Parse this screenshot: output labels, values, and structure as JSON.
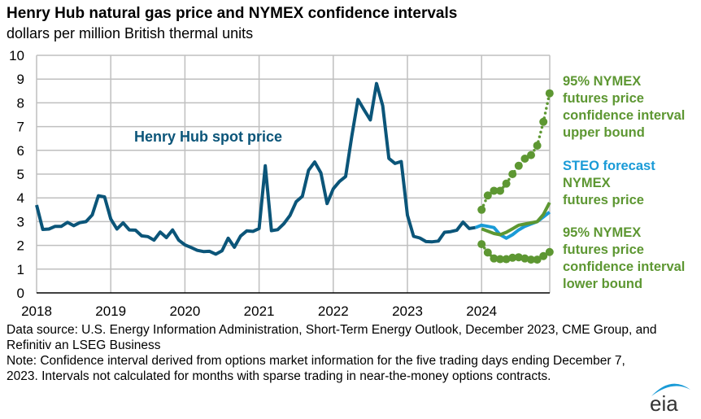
{
  "title": "Henry Hub natural gas price and NYMEX confidence intervals",
  "subtitle": "dollars per million British thermal units",
  "chart_data": {
    "type": "line",
    "title": "Henry Hub natural gas price and NYMEX confidence intervals",
    "ylabel": "dollars per million British thermal units",
    "ylim": [
      0,
      10
    ],
    "yticks": [
      "0",
      "1",
      "2",
      "3",
      "4",
      "5",
      "6",
      "7",
      "8",
      "9",
      "10"
    ],
    "xticks": [
      "2018",
      "2019",
      "2020",
      "2021",
      "2022",
      "2023",
      "2024"
    ],
    "grid": true,
    "x_unit": "month",
    "series": [
      {
        "name": "Henry Hub spot price",
        "color": "#0b5579",
        "start": "2018-01",
        "values": [
          3.7,
          2.67,
          2.69,
          2.8,
          2.8,
          2.97,
          2.83,
          2.96,
          3.0,
          3.28,
          4.09,
          4.04,
          3.11,
          2.69,
          2.95,
          2.65,
          2.64,
          2.4,
          2.37,
          2.22,
          2.56,
          2.33,
          2.65,
          2.22,
          2.02,
          1.91,
          1.79,
          1.74,
          1.75,
          1.63,
          1.77,
          2.3,
          1.92,
          2.39,
          2.61,
          2.59,
          2.71,
          5.35,
          2.62,
          2.66,
          2.91,
          3.26,
          3.84,
          4.07,
          5.16,
          5.51,
          5.05,
          3.76,
          4.38,
          4.69,
          4.9,
          6.6,
          8.14,
          7.7,
          7.28,
          8.81,
          7.88,
          5.66,
          5.45,
          5.53,
          3.27,
          2.38,
          2.31,
          2.16,
          2.15,
          2.18,
          2.55,
          2.58,
          2.64,
          2.98,
          2.71,
          2.75
        ]
      },
      {
        "name": "STEO forecast",
        "color": "#1a9bd7",
        "start": "2023-12",
        "values": [
          2.75,
          2.85,
          2.8,
          2.75,
          2.45,
          2.3,
          2.45,
          2.65,
          2.8,
          2.9,
          3.0,
          3.2,
          3.4
        ]
      },
      {
        "name": "NYMEX futures price",
        "color": "#5d9732",
        "start": "2024-01",
        "values": [
          2.7,
          2.6,
          2.5,
          2.45,
          2.55,
          2.7,
          2.85,
          2.9,
          2.95,
          3.0,
          3.3,
          3.8
        ]
      },
      {
        "name": "95% NYMEX futures price confidence interval upper bound",
        "color": "#5d9732",
        "start": "2024-01",
        "values": [
          3.5,
          4.1,
          4.3,
          4.3,
          4.6,
          5.0,
          5.35,
          5.65,
          5.8,
          6.2,
          7.2,
          8.4
        ]
      },
      {
        "name": "95% NYMEX futures price confidence interval lower bound",
        "color": "#5d9732",
        "start": "2024-01",
        "values": [
          2.05,
          1.7,
          1.45,
          1.42,
          1.42,
          1.48,
          1.5,
          1.45,
          1.4,
          1.4,
          1.55,
          1.72
        ]
      }
    ]
  },
  "labels": {
    "spot": "Henry Hub spot price",
    "upper": [
      "95% NYMEX",
      "futures price",
      "confidence interval",
      "upper bound"
    ],
    "steo": [
      "STEO forecast"
    ],
    "nymex": [
      "NYMEX",
      "futures price"
    ],
    "lower": [
      "95% NYMEX",
      "futures price",
      "confidence interval",
      "lower bound"
    ]
  },
  "notes": {
    "source": "Data source: U.S. Energy Information Administration, Short-Term Energy Outlook, December 2023, CME Group, and Refinitiv an LSEG Business",
    "note": "Note: Confidence interval derived from options market information for the five trading days ending December 7, 2023. Intervals not calculated for months with sparse trading in near-the-money options contracts."
  },
  "logo": "eia"
}
